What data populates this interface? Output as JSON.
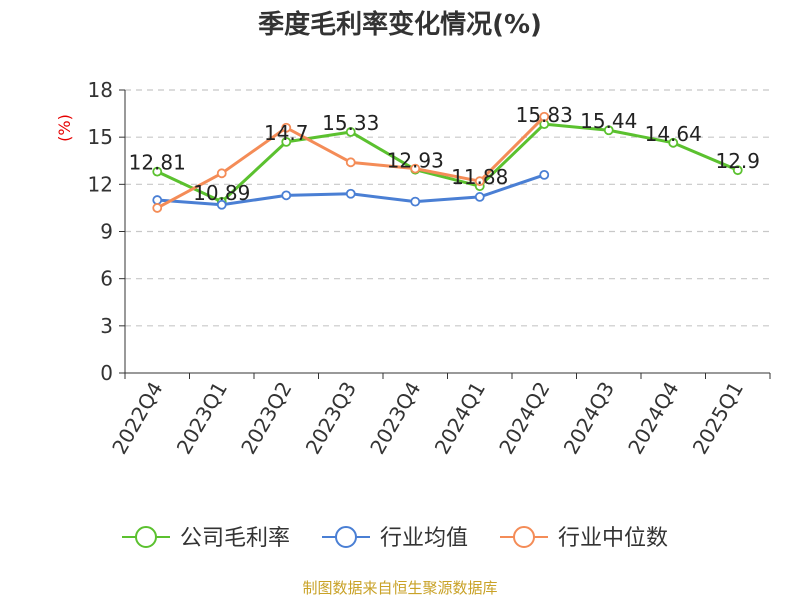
{
  "title": "季度毛利率变化情况(%)",
  "source": "制图数据来自恒生聚源数据库",
  "colors": {
    "company": "#5bc12f",
    "industry_avg": "#4a7fd4",
    "industry_median": "#f48c57",
    "unit": "#e60000",
    "source": "#c9a227"
  },
  "chart_data": {
    "type": "line",
    "title": "季度毛利率变化情况(%)",
    "ylabel": "(%)",
    "xlabel": "",
    "ylim": [
      0,
      18
    ],
    "yticks": [
      0,
      3,
      6,
      9,
      12,
      15,
      18
    ],
    "grid": true,
    "legend_position": "bottom",
    "categories": [
      "2022Q4",
      "2023Q1",
      "2023Q2",
      "2023Q3",
      "2023Q4",
      "2024Q1",
      "2024Q2",
      "2024Q3",
      "2024Q4",
      "2025Q1"
    ],
    "series": [
      {
        "name": "公司毛利率",
        "color": "#5bc12f",
        "labeled": true,
        "values": [
          12.81,
          10.89,
          14.7,
          15.33,
          12.93,
          11.88,
          15.83,
          15.44,
          14.64,
          12.9
        ],
        "labels": [
          "12.81",
          "10.89",
          "14.7",
          "15.33",
          "12.93",
          "11.88",
          "15.83",
          "15.44",
          "14.64",
          "12.9"
        ]
      },
      {
        "name": "行业均值",
        "color": "#4a7fd4",
        "labeled": false,
        "values": [
          11.0,
          10.7,
          11.3,
          11.4,
          10.9,
          11.2,
          12.6,
          null,
          null,
          null
        ]
      },
      {
        "name": "行业中位数",
        "color": "#f48c57",
        "labeled": false,
        "values": [
          10.5,
          12.7,
          15.6,
          13.4,
          13.0,
          12.2,
          16.3,
          null,
          null,
          null
        ]
      }
    ]
  }
}
